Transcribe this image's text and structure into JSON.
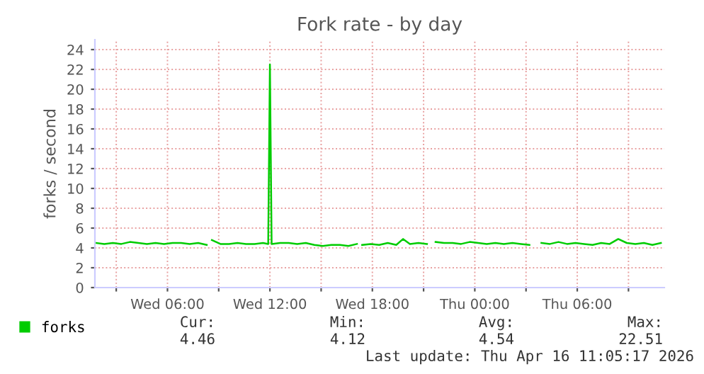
{
  "chart_data": {
    "type": "line",
    "title": "Fork rate - by day",
    "ylabel": "forks / second",
    "xlim": [
      "2026-04-15T01:45",
      "2026-04-16T11:06"
    ],
    "ylim": [
      0,
      25
    ],
    "xticks": [
      {
        "value": "2026-04-15T03:00",
        "label": null
      },
      {
        "value": "2026-04-15T06:00",
        "label": "Wed 06:00"
      },
      {
        "value": "2026-04-15T09:00",
        "label": null
      },
      {
        "value": "2026-04-15T12:00",
        "label": "Wed 12:00"
      },
      {
        "value": "2026-04-15T15:00",
        "label": null
      },
      {
        "value": "2026-04-15T18:00",
        "label": "Wed 18:00"
      },
      {
        "value": "2026-04-15T21:00",
        "label": null
      },
      {
        "value": "2026-04-16T00:00",
        "label": "Thu 00:00"
      },
      {
        "value": "2026-04-16T03:00",
        "label": null
      },
      {
        "value": "2026-04-16T06:00",
        "label": "Thu 06:00"
      },
      {
        "value": "2026-04-16T09:00",
        "label": null
      }
    ],
    "yticks": [
      0,
      2,
      4,
      6,
      8,
      10,
      12,
      14,
      16,
      18,
      20,
      22,
      24
    ],
    "grid": true,
    "legend": "bottom left",
    "marker": "none",
    "line_style": "solid",
    "series": [
      {
        "name": "forks",
        "color": "#00cc00",
        "x": [
          "2026-04-15T01:48",
          "2026-04-15T02:18",
          "2026-04-15T02:48",
          "2026-04-15T03:18",
          "2026-04-15T03:48",
          "2026-04-15T04:18",
          "2026-04-15T04:48",
          "2026-04-15T05:18",
          "2026-04-15T05:48",
          "2026-04-15T06:18",
          "2026-04-15T06:48",
          "2026-04-15T07:18",
          "2026-04-15T07:48",
          "2026-04-15T08:18",
          "2026-04-15T08:24",
          "2026-04-15T08:36",
          "2026-04-15T09:06",
          "2026-04-15T09:36",
          "2026-04-15T10:06",
          "2026-04-15T10:36",
          "2026-04-15T11:06",
          "2026-04-15T11:36",
          "2026-04-15T11:54",
          "2026-04-15T12:00",
          "2026-04-15T12:06",
          "2026-04-15T12:36",
          "2026-04-15T13:06",
          "2026-04-15T13:36",
          "2026-04-15T14:06",
          "2026-04-15T14:36",
          "2026-04-15T15:06",
          "2026-04-15T15:36",
          "2026-04-15T16:06",
          "2026-04-15T16:36",
          "2026-04-15T17:06",
          "2026-04-15T17:12",
          "2026-04-15T17:24",
          "2026-04-15T17:54",
          "2026-04-15T18:24",
          "2026-04-15T18:54",
          "2026-04-15T19:24",
          "2026-04-15T19:48",
          "2026-04-15T20:12",
          "2026-04-15T20:42",
          "2026-04-15T21:12",
          "2026-04-15T21:30",
          "2026-04-15T21:42",
          "2026-04-15T22:12",
          "2026-04-15T22:42",
          "2026-04-15T23:12",
          "2026-04-15T23:42",
          "2026-04-16T00:12",
          "2026-04-16T00:42",
          "2026-04-16T01:12",
          "2026-04-16T01:42",
          "2026-04-16T02:12",
          "2026-04-16T02:42",
          "2026-04-16T03:12",
          "2026-04-16T03:42",
          "2026-04-16T03:54",
          "2026-04-16T04:24",
          "2026-04-16T04:54",
          "2026-04-16T05:24",
          "2026-04-16T05:54",
          "2026-04-16T06:24",
          "2026-04-16T06:54",
          "2026-04-16T07:24",
          "2026-04-16T07:54",
          "2026-04-16T08:24",
          "2026-04-16T08:54",
          "2026-04-16T09:24",
          "2026-04-16T09:54",
          "2026-04-16T10:24",
          "2026-04-16T10:54"
        ],
        "values": [
          4.5,
          4.4,
          4.5,
          4.4,
          4.6,
          4.5,
          4.4,
          4.5,
          4.4,
          4.5,
          4.5,
          4.4,
          4.5,
          4.3,
          null,
          4.8,
          4.4,
          4.4,
          4.5,
          4.4,
          4.4,
          4.5,
          4.4,
          22.5,
          4.4,
          4.5,
          4.5,
          4.4,
          4.5,
          4.3,
          4.2,
          4.3,
          4.3,
          4.2,
          4.4,
          null,
          4.3,
          4.4,
          4.3,
          4.5,
          4.3,
          4.9,
          4.4,
          4.5,
          4.4,
          null,
          4.6,
          4.5,
          4.5,
          4.4,
          4.6,
          4.5,
          4.4,
          4.5,
          4.4,
          4.5,
          4.4,
          4.3,
          null,
          4.5,
          4.4,
          4.6,
          4.4,
          4.5,
          4.4,
          4.3,
          4.5,
          4.4,
          4.9,
          4.5,
          4.4,
          4.5,
          4.3,
          4.5
        ]
      }
    ],
    "annotations": [
      "Cur:",
      "4.46",
      "Min:",
      "4.12",
      "Avg:",
      "4.54",
      "Max:",
      "22.51",
      "Last update: Thu Apr 16 11:05:17 2026"
    ]
  }
}
